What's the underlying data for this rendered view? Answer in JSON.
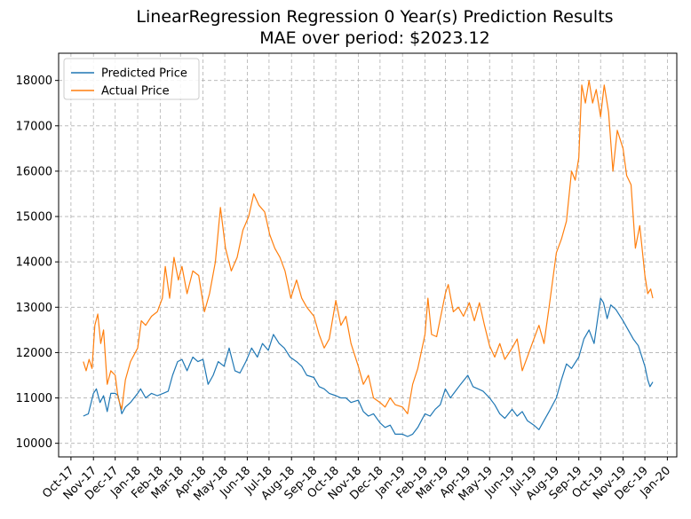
{
  "chart_data": {
    "type": "line",
    "title": "LinearRegression Regression 0 Year(s) Prediction Results",
    "subtitle": "MAE over period: $2023.12",
    "xlabel": "",
    "ylabel": "",
    "x_axis_type": "date",
    "xlim": [
      "2017-09-14",
      "2020-01-14"
    ],
    "ylim": [
      9700,
      18600
    ],
    "yticks": [
      10000,
      11000,
      12000,
      13000,
      14000,
      15000,
      16000,
      17000,
      18000
    ],
    "xticks": [
      {
        "date": "2017-10-01",
        "label": "Oct-17"
      },
      {
        "date": "2017-11-01",
        "label": "Nov-17"
      },
      {
        "date": "2017-12-01",
        "label": "Dec-17"
      },
      {
        "date": "2018-01-01",
        "label": "Jan-18"
      },
      {
        "date": "2018-02-01",
        "label": "Feb-18"
      },
      {
        "date": "2018-03-01",
        "label": "Mar-18"
      },
      {
        "date": "2018-04-01",
        "label": "Apr-18"
      },
      {
        "date": "2018-05-01",
        "label": "May-18"
      },
      {
        "date": "2018-06-01",
        "label": "Jun-18"
      },
      {
        "date": "2018-07-01",
        "label": "Jul-18"
      },
      {
        "date": "2018-08-01",
        "label": "Aug-18"
      },
      {
        "date": "2018-09-01",
        "label": "Sep-18"
      },
      {
        "date": "2018-10-01",
        "label": "Oct-18"
      },
      {
        "date": "2018-11-01",
        "label": "Nov-18"
      },
      {
        "date": "2018-12-01",
        "label": "Dec-18"
      },
      {
        "date": "2019-01-01",
        "label": "Jan-19"
      },
      {
        "date": "2019-02-01",
        "label": "Feb-19"
      },
      {
        "date": "2019-03-01",
        "label": "Mar-19"
      },
      {
        "date": "2019-04-01",
        "label": "Apr-19"
      },
      {
        "date": "2019-05-01",
        "label": "May-19"
      },
      {
        "date": "2019-06-01",
        "label": "Jun-19"
      },
      {
        "date": "2019-07-01",
        "label": "Jul-19"
      },
      {
        "date": "2019-08-01",
        "label": "Aug-19"
      },
      {
        "date": "2019-09-01",
        "label": "Sep-19"
      },
      {
        "date": "2019-10-01",
        "label": "Oct-19"
      },
      {
        "date": "2019-11-01",
        "label": "Nov-19"
      },
      {
        "date": "2019-12-01",
        "label": "Dec-19"
      },
      {
        "date": "2020-01-01",
        "label": "Jan-20"
      }
    ],
    "grid": true,
    "legend_position": "top-left",
    "series": [
      {
        "name": "Predicted Price",
        "color": "#1f77b4",
        "points": [
          [
            "2017-10-18",
            10600
          ],
          [
            "2017-10-25",
            10650
          ],
          [
            "2017-11-01",
            11100
          ],
          [
            "2017-11-05",
            11200
          ],
          [
            "2017-11-10",
            10900
          ],
          [
            "2017-11-15",
            11050
          ],
          [
            "2017-11-20",
            10700
          ],
          [
            "2017-11-25",
            11100
          ],
          [
            "2017-12-01",
            11100
          ],
          [
            "2017-12-05",
            11050
          ],
          [
            "2017-12-10",
            10650
          ],
          [
            "2017-12-15",
            10800
          ],
          [
            "2017-12-22",
            10900
          ],
          [
            "2018-01-01",
            11100
          ],
          [
            "2018-01-05",
            11200
          ],
          [
            "2018-01-12",
            11000
          ],
          [
            "2018-01-20",
            11100
          ],
          [
            "2018-01-28",
            11050
          ],
          [
            "2018-02-05",
            11100
          ],
          [
            "2018-02-12",
            11150
          ],
          [
            "2018-02-18",
            11500
          ],
          [
            "2018-02-25",
            11800
          ],
          [
            "2018-03-03",
            11850
          ],
          [
            "2018-03-10",
            11600
          ],
          [
            "2018-03-18",
            11900
          ],
          [
            "2018-03-25",
            11800
          ],
          [
            "2018-04-01",
            11850
          ],
          [
            "2018-04-08",
            11300
          ],
          [
            "2018-04-15",
            11500
          ],
          [
            "2018-04-22",
            11800
          ],
          [
            "2018-04-30",
            11700
          ],
          [
            "2018-05-07",
            12100
          ],
          [
            "2018-05-15",
            11600
          ],
          [
            "2018-05-22",
            11550
          ],
          [
            "2018-05-30",
            11800
          ],
          [
            "2018-06-07",
            12100
          ],
          [
            "2018-06-15",
            11900
          ],
          [
            "2018-06-22",
            12200
          ],
          [
            "2018-06-30",
            12050
          ],
          [
            "2018-07-07",
            12400
          ],
          [
            "2018-07-15",
            12200
          ],
          [
            "2018-07-22",
            12100
          ],
          [
            "2018-07-30",
            11900
          ],
          [
            "2018-08-08",
            11800
          ],
          [
            "2018-08-15",
            11700
          ],
          [
            "2018-08-22",
            11500
          ],
          [
            "2018-09-01",
            11450
          ],
          [
            "2018-09-08",
            11250
          ],
          [
            "2018-09-15",
            11200
          ],
          [
            "2018-09-22",
            11100
          ],
          [
            "2018-10-01",
            11050
          ],
          [
            "2018-10-08",
            11000
          ],
          [
            "2018-10-15",
            11000
          ],
          [
            "2018-10-22",
            10900
          ],
          [
            "2018-11-01",
            10950
          ],
          [
            "2018-11-08",
            10700
          ],
          [
            "2018-11-15",
            10600
          ],
          [
            "2018-11-22",
            10650
          ],
          [
            "2018-12-01",
            10450
          ],
          [
            "2018-12-08",
            10350
          ],
          [
            "2018-12-15",
            10400
          ],
          [
            "2018-12-22",
            10200
          ],
          [
            "2019-01-01",
            10200
          ],
          [
            "2019-01-08",
            10150
          ],
          [
            "2019-01-15",
            10200
          ],
          [
            "2019-01-22",
            10350
          ],
          [
            "2019-02-01",
            10650
          ],
          [
            "2019-02-08",
            10600
          ],
          [
            "2019-02-15",
            10750
          ],
          [
            "2019-02-22",
            10850
          ],
          [
            "2019-03-01",
            11200
          ],
          [
            "2019-03-08",
            11000
          ],
          [
            "2019-03-15",
            11150
          ],
          [
            "2019-03-22",
            11300
          ],
          [
            "2019-04-01",
            11500
          ],
          [
            "2019-04-08",
            11250
          ],
          [
            "2019-04-15",
            11200
          ],
          [
            "2019-04-22",
            11150
          ],
          [
            "2019-05-01",
            11000
          ],
          [
            "2019-05-08",
            10850
          ],
          [
            "2019-05-15",
            10650
          ],
          [
            "2019-05-22",
            10550
          ],
          [
            "2019-06-01",
            10750
          ],
          [
            "2019-06-08",
            10600
          ],
          [
            "2019-06-15",
            10700
          ],
          [
            "2019-06-22",
            10500
          ],
          [
            "2019-07-01",
            10400
          ],
          [
            "2019-07-08",
            10300
          ],
          [
            "2019-07-15",
            10500
          ],
          [
            "2019-07-22",
            10700
          ],
          [
            "2019-08-01",
            11000
          ],
          [
            "2019-08-08",
            11400
          ],
          [
            "2019-08-15",
            11750
          ],
          [
            "2019-08-22",
            11650
          ],
          [
            "2019-09-01",
            11900
          ],
          [
            "2019-09-08",
            12300
          ],
          [
            "2019-09-15",
            12500
          ],
          [
            "2019-09-22",
            12200
          ],
          [
            "2019-10-01",
            13200
          ],
          [
            "2019-10-05",
            13100
          ],
          [
            "2019-10-10",
            12750
          ],
          [
            "2019-10-15",
            13050
          ],
          [
            "2019-10-22",
            12950
          ],
          [
            "2019-11-01",
            12700
          ],
          [
            "2019-11-08",
            12500
          ],
          [
            "2019-11-15",
            12300
          ],
          [
            "2019-11-22",
            12150
          ],
          [
            "2019-12-01",
            11700
          ],
          [
            "2019-12-05",
            11400
          ],
          [
            "2019-12-08",
            11250
          ],
          [
            "2019-12-12",
            11350
          ]
        ]
      },
      {
        "name": "Actual Price",
        "color": "#ff7f0e",
        "points": [
          [
            "2017-10-18",
            11800
          ],
          [
            "2017-10-22",
            11600
          ],
          [
            "2017-10-26",
            11850
          ],
          [
            "2017-10-30",
            11650
          ],
          [
            "2017-11-03",
            12600
          ],
          [
            "2017-11-07",
            12850
          ],
          [
            "2017-11-11",
            12200
          ],
          [
            "2017-11-15",
            12500
          ],
          [
            "2017-11-20",
            11300
          ],
          [
            "2017-11-25",
            11600
          ],
          [
            "2017-12-01",
            11500
          ],
          [
            "2017-12-05",
            11000
          ],
          [
            "2017-12-10",
            10750
          ],
          [
            "2017-12-15",
            11400
          ],
          [
            "2017-12-22",
            11800
          ],
          [
            "2018-01-01",
            12100
          ],
          [
            "2018-01-06",
            12700
          ],
          [
            "2018-01-12",
            12600
          ],
          [
            "2018-01-20",
            12800
          ],
          [
            "2018-01-28",
            12900
          ],
          [
            "2018-02-04",
            13200
          ],
          [
            "2018-02-08",
            13900
          ],
          [
            "2018-02-14",
            13200
          ],
          [
            "2018-02-20",
            14100
          ],
          [
            "2018-02-26",
            13600
          ],
          [
            "2018-03-03",
            13900
          ],
          [
            "2018-03-10",
            13300
          ],
          [
            "2018-03-18",
            13800
          ],
          [
            "2018-03-26",
            13700
          ],
          [
            "2018-04-03",
            12900
          ],
          [
            "2018-04-10",
            13300
          ],
          [
            "2018-04-18",
            14000
          ],
          [
            "2018-04-25",
            15200
          ],
          [
            "2018-05-02",
            14300
          ],
          [
            "2018-05-10",
            13800
          ],
          [
            "2018-05-18",
            14100
          ],
          [
            "2018-05-26",
            14700
          ],
          [
            "2018-06-03",
            15000
          ],
          [
            "2018-06-10",
            15500
          ],
          [
            "2018-06-17",
            15250
          ],
          [
            "2018-06-25",
            15100
          ],
          [
            "2018-07-02",
            14600
          ],
          [
            "2018-07-09",
            14300
          ],
          [
            "2018-07-16",
            14100
          ],
          [
            "2018-07-23",
            13800
          ],
          [
            "2018-07-31",
            13200
          ],
          [
            "2018-08-08",
            13600
          ],
          [
            "2018-08-15",
            13200
          ],
          [
            "2018-08-22",
            13000
          ],
          [
            "2018-09-01",
            12800
          ],
          [
            "2018-09-08",
            12400
          ],
          [
            "2018-09-15",
            12100
          ],
          [
            "2018-09-22",
            12300
          ],
          [
            "2018-10-01",
            13150
          ],
          [
            "2018-10-08",
            12600
          ],
          [
            "2018-10-15",
            12800
          ],
          [
            "2018-10-22",
            12200
          ],
          [
            "2018-11-01",
            11700
          ],
          [
            "2018-11-08",
            11300
          ],
          [
            "2018-11-15",
            11500
          ],
          [
            "2018-11-22",
            11000
          ],
          [
            "2018-12-01",
            10900
          ],
          [
            "2018-12-08",
            10800
          ],
          [
            "2018-12-15",
            11000
          ],
          [
            "2018-12-22",
            10850
          ],
          [
            "2019-01-01",
            10800
          ],
          [
            "2019-01-08",
            10650
          ],
          [
            "2019-01-15",
            11300
          ],
          [
            "2019-01-22",
            11650
          ],
          [
            "2019-02-01",
            12400
          ],
          [
            "2019-02-05",
            13200
          ],
          [
            "2019-02-10",
            12400
          ],
          [
            "2019-02-17",
            12350
          ],
          [
            "2019-02-24",
            12900
          ],
          [
            "2019-03-01",
            13300
          ],
          [
            "2019-03-05",
            13500
          ],
          [
            "2019-03-12",
            12900
          ],
          [
            "2019-03-19",
            13000
          ],
          [
            "2019-03-26",
            12800
          ],
          [
            "2019-04-03",
            13100
          ],
          [
            "2019-04-10",
            12700
          ],
          [
            "2019-04-17",
            13100
          ],
          [
            "2019-04-24",
            12600
          ],
          [
            "2019-05-01",
            12150
          ],
          [
            "2019-05-08",
            11900
          ],
          [
            "2019-05-15",
            12200
          ],
          [
            "2019-05-22",
            11850
          ],
          [
            "2019-06-01",
            12100
          ],
          [
            "2019-06-08",
            12300
          ],
          [
            "2019-06-15",
            11600
          ],
          [
            "2019-06-22",
            11900
          ],
          [
            "2019-07-01",
            12300
          ],
          [
            "2019-07-08",
            12600
          ],
          [
            "2019-07-15",
            12200
          ],
          [
            "2019-07-22",
            13000
          ],
          [
            "2019-08-01",
            14200
          ],
          [
            "2019-08-08",
            14500
          ],
          [
            "2019-08-15",
            14900
          ],
          [
            "2019-08-22",
            16000
          ],
          [
            "2019-08-27",
            15800
          ],
          [
            "2019-09-01",
            16300
          ],
          [
            "2019-09-05",
            17900
          ],
          [
            "2019-09-10",
            17500
          ],
          [
            "2019-09-15",
            18000
          ],
          [
            "2019-09-20",
            17500
          ],
          [
            "2019-09-25",
            17800
          ],
          [
            "2019-10-01",
            17200
          ],
          [
            "2019-10-06",
            17900
          ],
          [
            "2019-10-12",
            17300
          ],
          [
            "2019-10-18",
            16000
          ],
          [
            "2019-10-24",
            16900
          ],
          [
            "2019-11-01",
            16500
          ],
          [
            "2019-11-06",
            15900
          ],
          [
            "2019-11-12",
            15700
          ],
          [
            "2019-11-18",
            14300
          ],
          [
            "2019-11-24",
            14800
          ],
          [
            "2019-12-01",
            13700
          ],
          [
            "2019-12-05",
            13300
          ],
          [
            "2019-12-09",
            13400
          ],
          [
            "2019-12-12",
            13200
          ]
        ]
      }
    ]
  }
}
